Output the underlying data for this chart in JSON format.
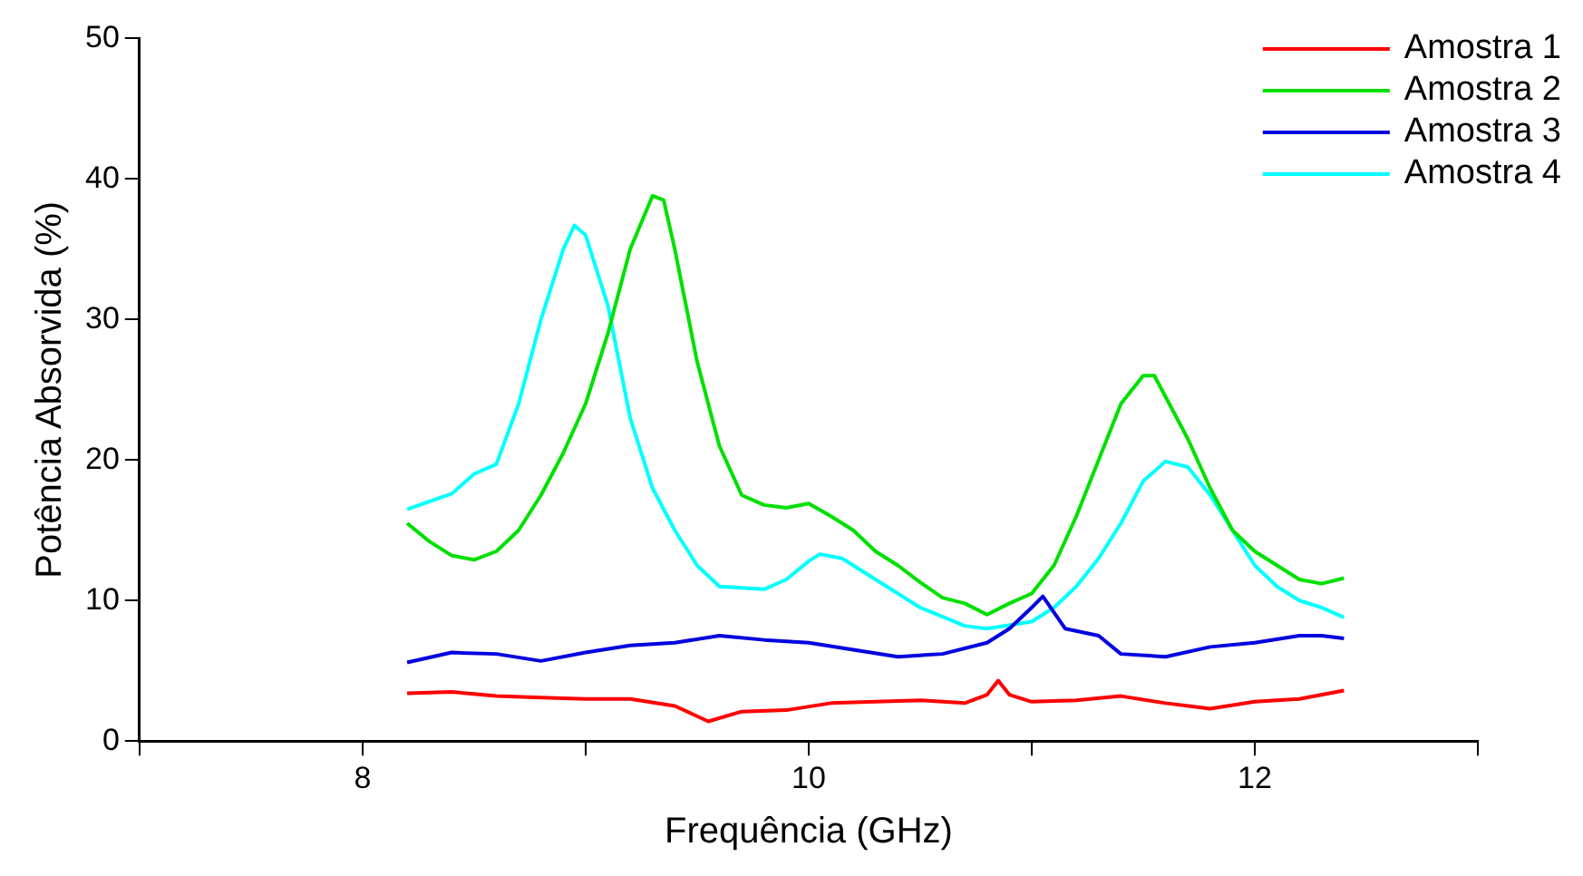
{
  "chart_data": {
    "type": "line",
    "xlabel": "Frequência (GHz)",
    "ylabel": "Potência Absorvida (%)",
    "xlim": [
      7,
      13
    ],
    "xticks": [
      {
        "value": 7,
        "label": null
      },
      8,
      {
        "value": 9,
        "label": null
      },
      10,
      {
        "value": 11,
        "label": null
      },
      12,
      {
        "value": 13,
        "label": null
      }
    ],
    "ylim": [
      0,
      50
    ],
    "yticks": [
      0,
      10,
      20,
      30,
      40,
      50
    ],
    "grid": false,
    "legend": "top right",
    "marker": "none",
    "line_style": "solid",
    "series": [
      {
        "name": "Amostra 1",
        "color": "#ff0000",
        "x": [
          8.2,
          8.4,
          8.6,
          8.8,
          9.0,
          9.2,
          9.4,
          9.55,
          9.7,
          9.9,
          10.1,
          10.3,
          10.5,
          10.7,
          10.8,
          10.85,
          10.9,
          11.0,
          11.2,
          11.4,
          11.6,
          11.8,
          12.0,
          12.2,
          12.4
        ],
        "values": [
          3.4,
          3.5,
          3.2,
          3.1,
          3.0,
          3.0,
          2.5,
          1.4,
          2.1,
          2.2,
          2.7,
          2.8,
          2.9,
          2.7,
          3.3,
          4.3,
          3.3,
          2.8,
          2.9,
          3.2,
          2.7,
          2.3,
          2.8,
          3.0,
          3.6
        ]
      },
      {
        "name": "Amostra 2",
        "color": "#00e000",
        "x": [
          8.2,
          8.3,
          8.4,
          8.5,
          8.6,
          8.7,
          8.8,
          8.9,
          9.0,
          9.1,
          9.2,
          9.3,
          9.35,
          9.4,
          9.5,
          9.6,
          9.7,
          9.8,
          9.9,
          10.0,
          10.1,
          10.2,
          10.3,
          10.4,
          10.5,
          10.6,
          10.7,
          10.8,
          10.9,
          11.0,
          11.1,
          11.2,
          11.3,
          11.4,
          11.5,
          11.55,
          11.6,
          11.7,
          11.8,
          11.9,
          12.0,
          12.1,
          12.2,
          12.3,
          12.4
        ],
        "values": [
          15.5,
          14.2,
          13.2,
          12.9,
          13.5,
          15,
          17.5,
          20.5,
          24,
          29,
          35,
          38.8,
          38.5,
          35,
          27,
          21,
          17.5,
          16.8,
          16.6,
          16.9,
          16,
          15,
          13.5,
          12.5,
          11.3,
          10.2,
          9.8,
          9,
          9.8,
          10.5,
          12.5,
          16,
          20,
          24,
          26,
          26,
          24.5,
          21.5,
          18,
          15,
          13.5,
          12.5,
          11.5,
          11.2,
          11.6
        ]
      },
      {
        "name": "Amostra 3",
        "color": "#0000e0",
        "x": [
          8.2,
          8.4,
          8.6,
          8.8,
          9.0,
          9.2,
          9.4,
          9.6,
          9.8,
          10.0,
          10.2,
          10.4,
          10.6,
          10.8,
          10.9,
          11.0,
          11.05,
          11.15,
          11.3,
          11.4,
          11.6,
          11.8,
          12.0,
          12.2,
          12.3,
          12.4
        ],
        "values": [
          5.6,
          6.3,
          6.2,
          5.7,
          6.3,
          6.8,
          7.0,
          7.5,
          7.2,
          7.0,
          6.5,
          6.0,
          6.2,
          7.0,
          8.0,
          9.5,
          10.3,
          8.0,
          7.5,
          6.2,
          6.0,
          6.7,
          7.0,
          7.5,
          7.5,
          7.3
        ]
      },
      {
        "name": "Amostra 4",
        "color": "#00ffff",
        "x": [
          8.2,
          8.4,
          8.5,
          8.6,
          8.7,
          8.8,
          8.9,
          8.95,
          9.0,
          9.1,
          9.2,
          9.3,
          9.4,
          9.5,
          9.6,
          9.8,
          9.9,
          10.0,
          10.05,
          10.15,
          10.3,
          10.5,
          10.7,
          10.8,
          11.0,
          11.1,
          11.2,
          11.3,
          11.4,
          11.5,
          11.6,
          11.7,
          11.8,
          11.9,
          12.0,
          12.1,
          12.2,
          12.3,
          12.4
        ],
        "values": [
          16.5,
          17.6,
          19,
          19.7,
          24,
          30,
          35,
          36.7,
          36,
          31,
          23,
          18,
          15,
          12.5,
          11,
          10.8,
          11.5,
          12.8,
          13.3,
          13,
          11.5,
          9.5,
          8.2,
          8.0,
          8.5,
          9.5,
          11,
          13,
          15.5,
          18.5,
          19.9,
          19.5,
          17.5,
          15,
          12.5,
          11,
          10,
          9.5,
          8.8
        ]
      }
    ]
  }
}
